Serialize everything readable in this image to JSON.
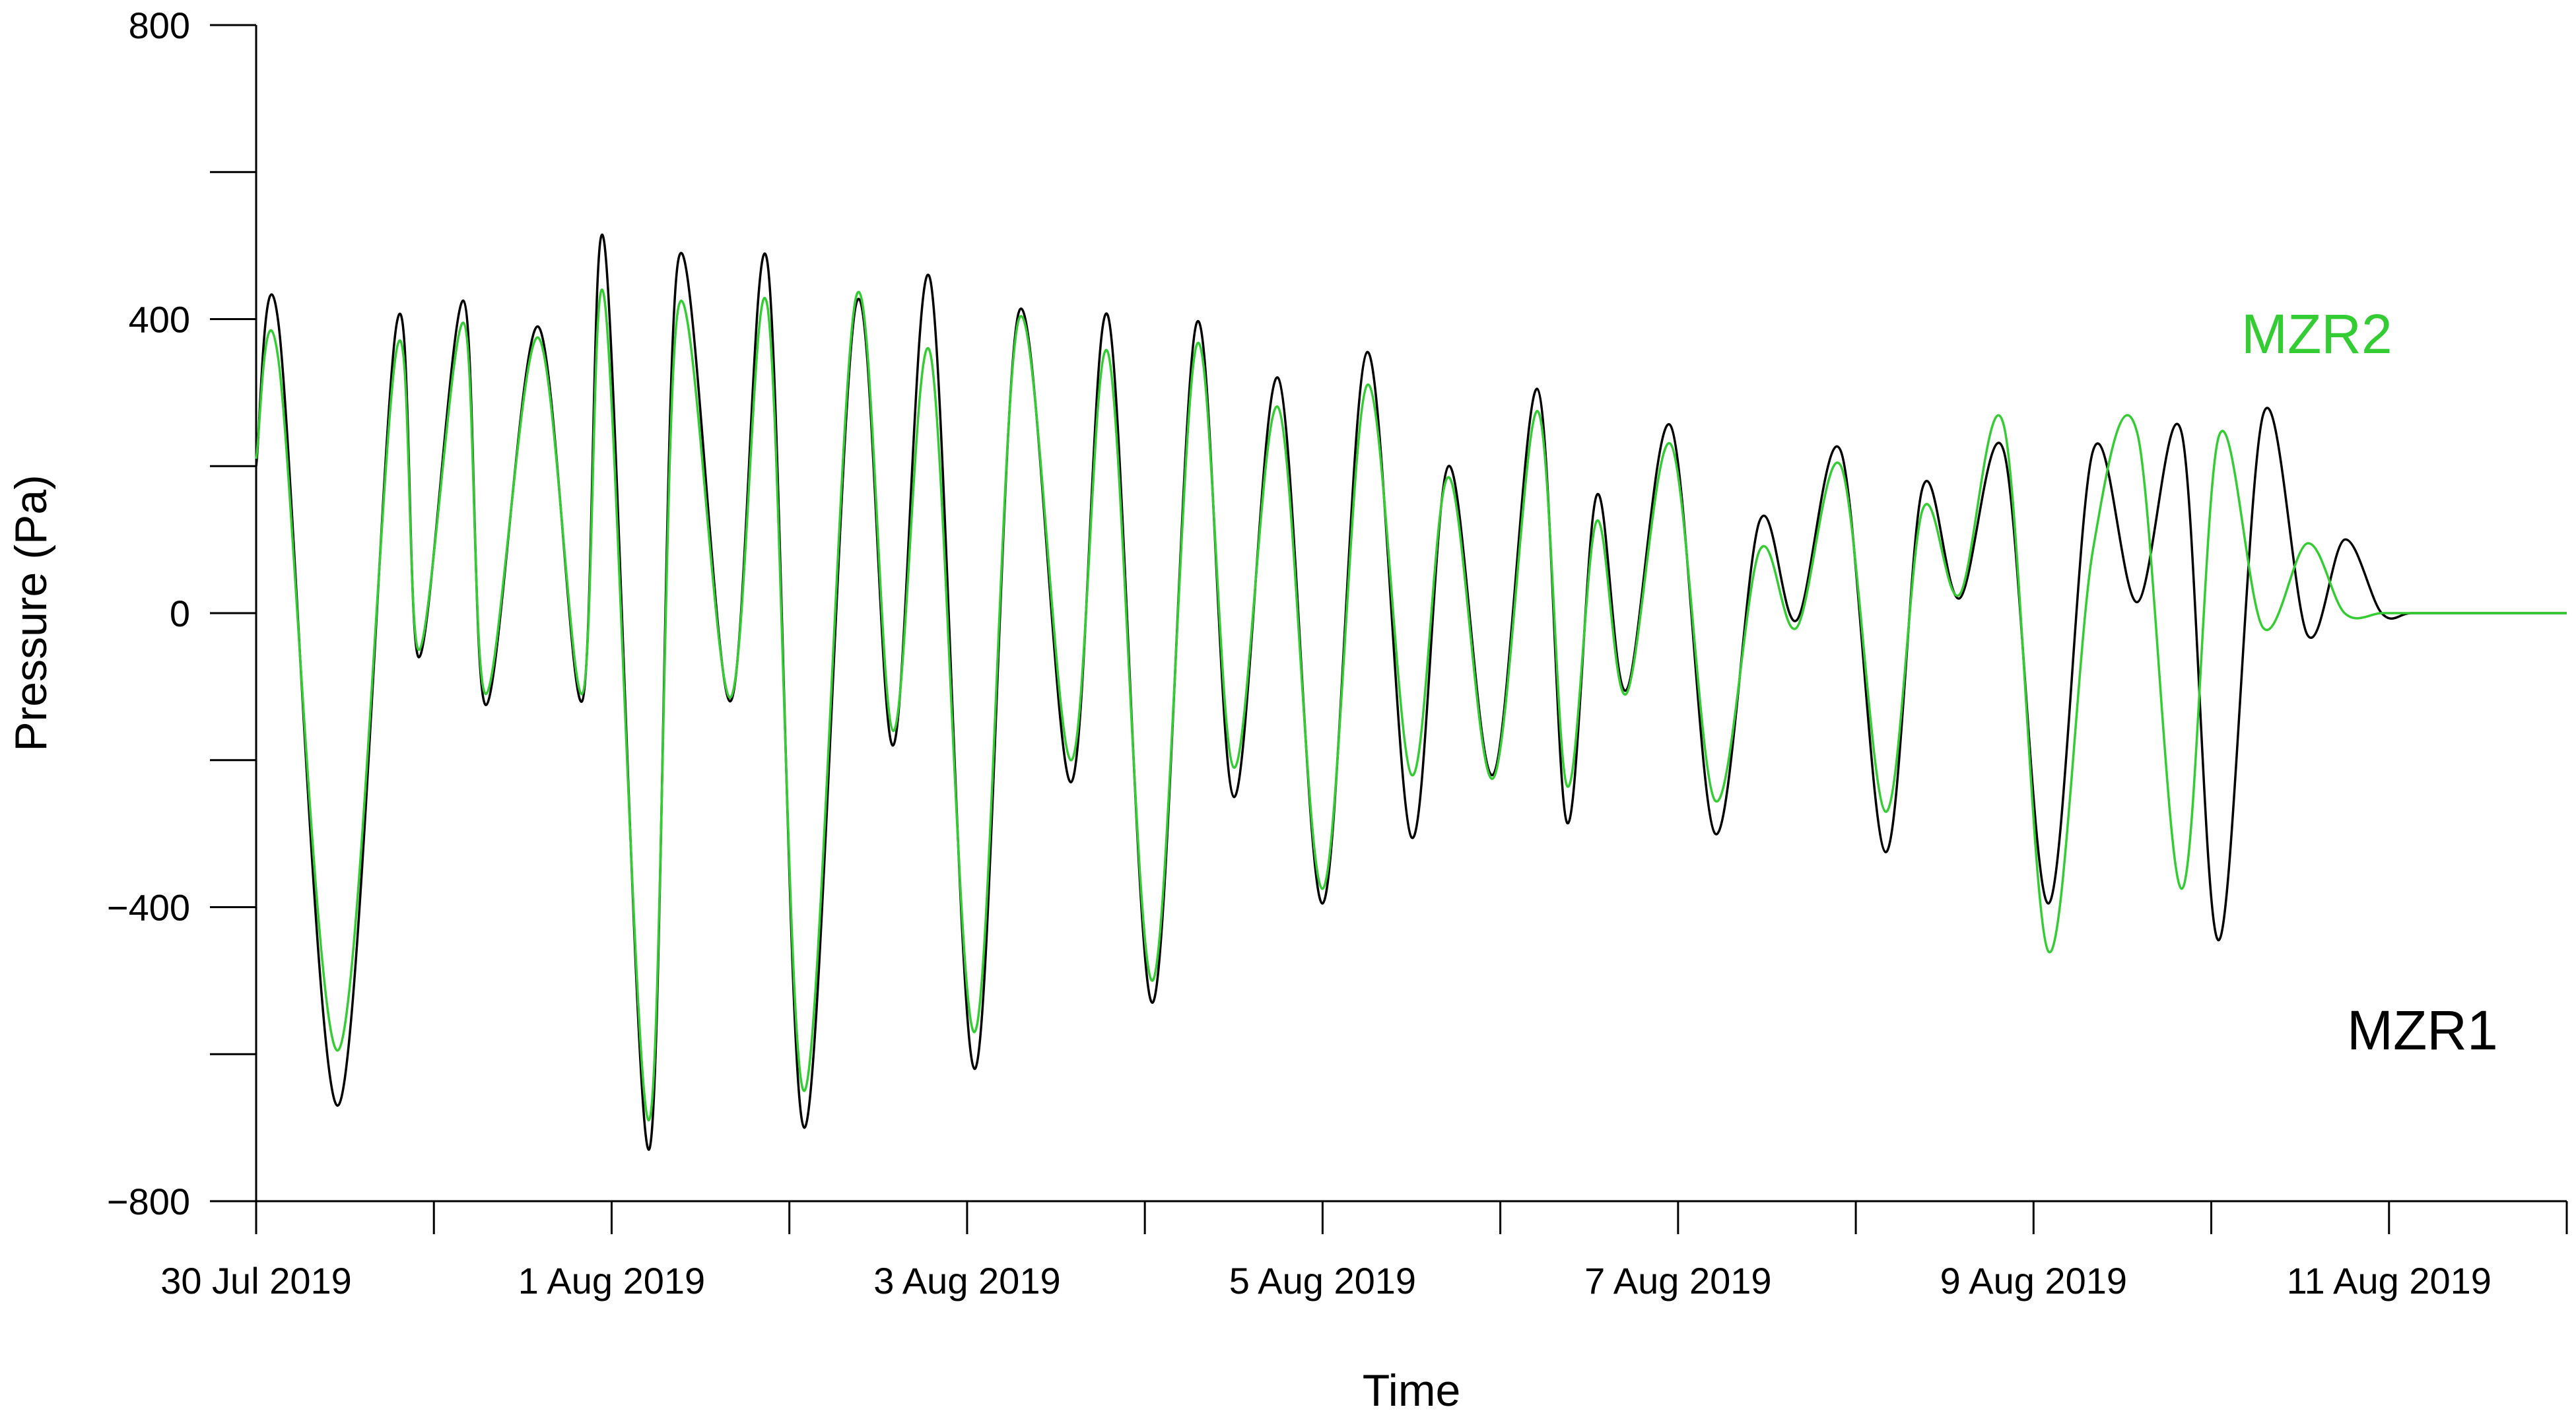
{
  "chart_data": {
    "type": "line",
    "xlabel": "Time",
    "ylabel": "Pressure (Pa)",
    "ylim": [
      -800,
      800
    ],
    "yticks": [
      -800,
      -400,
      0,
      400,
      800
    ],
    "ytick_labels": [
      "−800",
      "−400",
      "0",
      "400",
      "800"
    ],
    "xlim": [
      "2019-07-30",
      "2019-08-12"
    ],
    "xticks": [
      "2019-07-30",
      "2019-07-31",
      "2019-08-01",
      "2019-08-02",
      "2019-08-03",
      "2019-08-04",
      "2019-08-05",
      "2019-08-06",
      "2019-08-07",
      "2019-08-08",
      "2019-08-09",
      "2019-08-10",
      "2019-08-11",
      "2019-08-12"
    ],
    "xtick_labels": [
      "30 Jul 2019",
      "",
      "1 Aug 2019",
      "",
      "3 Aug 2019",
      "",
      "5 Aug 2019",
      "",
      "7 Aug 2019",
      "",
      "9 Aug 2019",
      "",
      "11 Aug 2019",
      ""
    ],
    "grid": false,
    "legend": "none (direct labels)",
    "series": [
      {
        "name": "MZR1",
        "color": "#000000",
        "x": [
          "2019-07-30 00:00",
          "2019-07-30 03:00",
          "2019-07-30 11:00",
          "2019-07-30 19:00",
          "2019-07-30 22:00",
          "2019-07-31 04:00",
          "2019-07-31 07:00",
          "2019-07-31 14:00",
          "2019-07-31 20:00",
          "2019-07-31 23:00",
          "2019-08-01 05:00",
          "2019-08-01 09:00",
          "2019-08-01 16:00",
          "2019-08-01 21:00",
          "2019-08-02 02:00",
          "2019-08-02 09:00",
          "2019-08-02 14:00",
          "2019-08-02 19:00",
          "2019-08-03 01:00",
          "2019-08-03 07:00",
          "2019-08-03 14:00",
          "2019-08-03 19:00",
          "2019-08-04 01:00",
          "2019-08-04 07:00",
          "2019-08-04 12:00",
          "2019-08-04 18:00",
          "2019-08-05 00:00",
          "2019-08-05 06:00",
          "2019-08-05 12:00",
          "2019-08-05 17:00",
          "2019-08-05 23:00",
          "2019-08-06 05:00",
          "2019-08-06 09:00",
          "2019-08-06 13:00",
          "2019-08-06 17:00",
          "2019-08-06 23:00",
          "2019-08-07 05:00",
          "2019-08-07 11:00",
          "2019-08-07 16:00",
          "2019-08-07 22:00",
          "2019-08-08 04:00",
          "2019-08-08 09:00",
          "2019-08-08 14:00",
          "2019-08-08 20:00",
          "2019-08-09 02:00",
          "2019-08-09 08:00",
          "2019-08-09 14:00",
          "2019-08-09 20:00",
          "2019-08-10 01:00",
          "2019-08-10 07:00",
          "2019-08-10 13:00",
          "2019-08-10 18:00",
          "2019-08-10 23:00",
          "2019-08-11 03:00",
          "2019-08-11 09:00",
          "2019-08-11 14:00",
          "2019-08-11 20:00",
          "2019-08-12 00:00"
        ],
        "values": [
          200,
          395,
          -670,
          395,
          -60,
          425,
          -125,
          390,
          -120,
          505,
          -730,
          480,
          -120,
          480,
          -700,
          420,
          -180,
          455,
          -620,
          410,
          -230,
          405,
          -530,
          395,
          -250,
          320,
          -395,
          355,
          -305,
          200,
          -220,
          305,
          -285,
          160,
          -105,
          255,
          -300,
          125,
          -10,
          220,
          -325,
          170,
          20,
          220,
          -395,
          220,
          15,
          245,
          -445,
          270,
          -30,
          100,
          0,
          0,
          0,
          0,
          0,
          0
        ]
      },
      {
        "name": "MZR2",
        "color": "#33cc33",
        "x": [
          "2019-07-30 00:00",
          "2019-07-30 03:00",
          "2019-07-30 11:00",
          "2019-07-30 19:00",
          "2019-07-30 22:00",
          "2019-07-31 04:00",
          "2019-07-31 07:00",
          "2019-07-31 14:00",
          "2019-07-31 20:00",
          "2019-07-31 23:00",
          "2019-08-01 05:00",
          "2019-08-01 09:00",
          "2019-08-01 16:00",
          "2019-08-01 21:00",
          "2019-08-02 02:00",
          "2019-08-02 09:00",
          "2019-08-02 14:00",
          "2019-08-02 19:00",
          "2019-08-03 01:00",
          "2019-08-03 07:00",
          "2019-08-03 14:00",
          "2019-08-03 19:00",
          "2019-08-04 01:00",
          "2019-08-04 07:00",
          "2019-08-04 12:00",
          "2019-08-04 18:00",
          "2019-08-05 00:00",
          "2019-08-05 06:00",
          "2019-08-05 12:00",
          "2019-08-05 17:00",
          "2019-08-05 23:00",
          "2019-08-06 05:00",
          "2019-08-06 09:00",
          "2019-08-06 13:00",
          "2019-08-06 17:00",
          "2019-08-06 23:00",
          "2019-08-07 05:00",
          "2019-08-07 11:00",
          "2019-08-07 16:00",
          "2019-08-07 22:00",
          "2019-08-08 04:00",
          "2019-08-08 09:00",
          "2019-08-08 14:00",
          "2019-08-08 20:00",
          "2019-08-09 02:00",
          "2019-08-09 08:00",
          "2019-08-09 14:00",
          "2019-08-09 20:00",
          "2019-08-10 01:00",
          "2019-08-10 07:00",
          "2019-08-10 13:00",
          "2019-08-10 18:00",
          "2019-08-10 23:00",
          "2019-08-11 03:00",
          "2019-08-11 09:00",
          "2019-08-11 14:00",
          "2019-08-11 20:00",
          "2019-08-12 00:00"
        ],
        "values": [
          210,
          345,
          -595,
          360,
          -50,
          395,
          -110,
          375,
          -110,
          430,
          -690,
          415,
          -115,
          420,
          -650,
          430,
          -160,
          355,
          -570,
          400,
          -200,
          355,
          -500,
          365,
          -210,
          280,
          -375,
          310,
          -220,
          185,
          -225,
          275,
          -235,
          125,
          -110,
          230,
          -255,
          85,
          -20,
          200,
          -270,
          140,
          25,
          255,
          -460,
          85,
          245,
          -375,
          240,
          -20,
          95,
          0,
          0,
          0,
          0,
          0,
          0,
          0
        ]
      }
    ],
    "annotations": [
      {
        "text": "MZR2",
        "color": "#33cc33"
      },
      {
        "text": "MZR1",
        "color": "#000000"
      }
    ]
  }
}
